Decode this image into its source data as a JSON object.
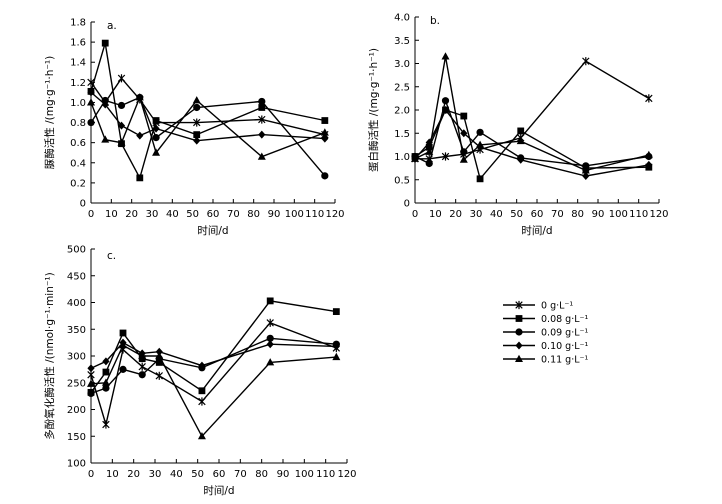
{
  "legend": {
    "labels": [
      "0 g·L⁻¹",
      "0.08 g·L⁻¹",
      "0.09 g·L⁻¹",
      "0.10 g·L⁻¹",
      "0.11 g·L⁻¹"
    ],
    "markers": [
      "x",
      "square",
      "circle",
      "diamond",
      "triangle"
    ],
    "placement": "right of panel c"
  },
  "chart_data": [
    {
      "type": "line",
      "panel_label": "a.",
      "xlabel": "时间/d",
      "ylabel": "脲酶活性 /(mg·g⁻¹·h⁻¹)",
      "xlim": [
        0,
        120
      ],
      "ylim": [
        0,
        1.8
      ],
      "xticks": [
        0,
        10,
        20,
        30,
        40,
        50,
        60,
        70,
        80,
        90,
        100,
        110,
        120
      ],
      "yticks": [
        "0",
        "0.2",
        "0.4",
        "0.6",
        "0.8",
        "1.0",
        "1.2",
        "1.4",
        "1.6",
        "1.8"
      ],
      "series": [
        {
          "name": "0 g·L⁻¹",
          "x": [
            0,
            7,
            15,
            24,
            32,
            52,
            84,
            115
          ],
          "values": [
            1.2,
            1.0,
            1.24,
            1.03,
            0.8,
            0.8,
            0.83,
            0.68
          ]
        },
        {
          "name": "0.08 g·L⁻¹",
          "x": [
            0,
            7,
            15,
            24,
            32,
            52,
            84,
            115
          ],
          "values": [
            1.11,
            1.59,
            0.59,
            0.25,
            0.82,
            0.68,
            0.95,
            0.82
          ]
        },
        {
          "name": "0.09 g·L⁻¹",
          "x": [
            0,
            7,
            15,
            24,
            32,
            52,
            84,
            115
          ],
          "values": [
            0.8,
            1.02,
            0.97,
            1.05,
            0.65,
            0.95,
            1.01,
            0.27
          ]
        },
        {
          "name": "0.10 g·L⁻¹",
          "x": [
            0,
            7,
            15,
            24,
            32,
            52,
            84,
            115
          ],
          "values": [
            1.1,
            0.98,
            0.77,
            0.67,
            0.74,
            0.62,
            0.68,
            0.64
          ]
        },
        {
          "name": "0.11 g·L⁻¹",
          "x": [
            0,
            7,
            15,
            24,
            32,
            52,
            84,
            115
          ],
          "values": [
            1.0,
            0.63,
            0.6,
            1.05,
            0.5,
            1.02,
            0.46,
            0.7
          ]
        }
      ]
    },
    {
      "type": "line",
      "panel_label": "b.",
      "xlabel": "时间/d",
      "ylabel": "蛋白酶活性 /(mg·g⁻¹·h⁻¹)",
      "xlim": [
        0,
        120
      ],
      "ylim": [
        0,
        4.0
      ],
      "xticks": [
        0,
        10,
        20,
        30,
        40,
        50,
        60,
        70,
        80,
        90,
        100,
        110,
        120
      ],
      "yticks": [
        "0",
        "0.5",
        "1.0",
        "1.5",
        "2.0",
        "2.5",
        "3.0",
        "3.5",
        "4.0"
      ],
      "series": [
        {
          "name": "0 g·L⁻¹",
          "x": [
            0,
            7,
            15,
            24,
            32,
            52,
            84,
            115
          ],
          "values": [
            0.95,
            0.95,
            1.0,
            1.05,
            1.15,
            1.4,
            3.05,
            2.25
          ]
        },
        {
          "name": "0.08 g·L⁻¹",
          "x": [
            0,
            7,
            15,
            24,
            32,
            52,
            84,
            115
          ],
          "values": [
            1.0,
            1.2,
            2.0,
            1.87,
            0.52,
            1.55,
            0.75,
            0.77
          ]
        },
        {
          "name": "0.09 g·L⁻¹",
          "x": [
            0,
            7,
            15,
            24,
            32,
            52,
            84,
            115
          ],
          "values": [
            1.0,
            0.85,
            2.2,
            1.1,
            1.52,
            0.97,
            0.8,
            1.0
          ]
        },
        {
          "name": "0.10 g·L⁻¹",
          "x": [
            0,
            7,
            15,
            24,
            32,
            52,
            84,
            115
          ],
          "values": [
            0.95,
            1.3,
            2.0,
            1.5,
            1.2,
            0.93,
            0.58,
            0.82
          ]
        },
        {
          "name": "0.11 g·L⁻¹",
          "x": [
            0,
            7,
            15,
            24,
            32,
            52,
            84,
            115
          ],
          "values": [
            0.95,
            1.1,
            3.15,
            0.93,
            1.25,
            1.33,
            0.7,
            1.03
          ]
        }
      ]
    },
    {
      "type": "line",
      "panel_label": "c.",
      "xlabel": "时间/d",
      "ylabel": "多酚氧化酶活性 /(nmol·g⁻¹·min⁻¹)",
      "xlim": [
        0,
        120
      ],
      "ylim": [
        100,
        500
      ],
      "xticks": [
        0,
        10,
        20,
        30,
        40,
        50,
        60,
        70,
        80,
        90,
        100,
        110,
        120
      ],
      "yticks": [
        "100",
        "150",
        "200",
        "250",
        "300",
        "350",
        "400",
        "450",
        "500"
      ],
      "series": [
        {
          "name": "0 g·L⁻¹",
          "x": [
            0,
            7,
            15,
            24,
            32,
            52,
            84,
            115
          ],
          "values": [
            265,
            172,
            312,
            280,
            263,
            215,
            362,
            315
          ]
        },
        {
          "name": "0.08 g·L⁻¹",
          "x": [
            0,
            7,
            15,
            24,
            32,
            52,
            84,
            115
          ],
          "values": [
            232,
            270,
            343,
            295,
            288,
            235,
            403,
            383
          ]
        },
        {
          "name": "0.09 g·L⁻¹",
          "x": [
            0,
            7,
            15,
            24,
            32,
            52,
            84,
            115
          ],
          "values": [
            230,
            240,
            275,
            265,
            295,
            278,
            333,
            322
          ]
        },
        {
          "name": "0.10 g·L⁻¹",
          "x": [
            0,
            7,
            15,
            24,
            32,
            52,
            84,
            115
          ],
          "values": [
            277,
            290,
            325,
            305,
            308,
            282,
            322,
            318
          ]
        },
        {
          "name": "0.11 g·L⁻¹",
          "x": [
            0,
            7,
            15,
            24,
            32,
            52,
            84,
            115
          ],
          "values": [
            248,
            250,
            320,
            300,
            300,
            150,
            288,
            298
          ]
        }
      ]
    }
  ]
}
